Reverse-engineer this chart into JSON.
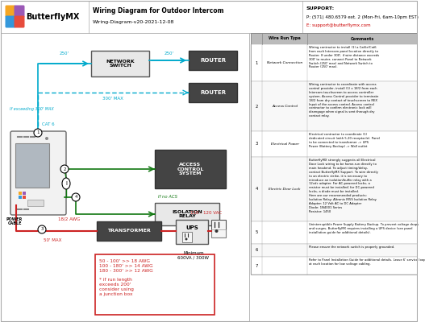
{
  "title": "Wiring Diagram for Outdoor Intercom",
  "subtitle": "Wiring-Diagram-v20-2021-12-08",
  "support_label": "SUPPORT:",
  "support_phone": "P: (571) 480.6579 ext. 2 (Mon-Fri, 6am-10pm EST)",
  "support_email": "E: support@butterflymx.com",
  "logo_text": "ButterflyMX",
  "bg_color": "#ffffff",
  "cyan_color": "#00aacc",
  "red_color": "#cc2222",
  "green_color": "#117711",
  "dark_box": "#444444",
  "light_box": "#dddddd",
  "table_header_bg": "#bbbbbb",
  "table_rows": [
    {
      "num": "1",
      "type": "Network Connection",
      "comment": "Wiring contractor to install (1) a Cat5e/Cat6\nfrom each Intercom panel location directly to\nRouter. If under 300', if wire distance exceeds\n300' to router, connect Panel to Network\nSwitch (250' max) and Network Switch to\nRouter (250' max)."
    },
    {
      "num": "2",
      "type": "Access Control",
      "comment": "Wiring contractor to coordinate with access\ncontrol provider, install (1) x 18/2 from each\nIntercom touchscreen to access controller\nsystem. Access Control provider to terminate\n18/2 from dry contact of touchscreen to REX\nInput of the access control. Access control\ncontractor to confirm electronic lock will\ndisengage when signal is sent through dry\ncontact relay."
    },
    {
      "num": "3",
      "type": "Electrical Power",
      "comment": "Electrical contractor to coordinate (1)\ndedicated circuit (with 5-20 receptacle). Panel\nto be connected to transformer -> UPS\nPower (Battery Backup) -> Wall outlet"
    },
    {
      "num": "4",
      "type": "Electric Door Lock",
      "comment": "ButterflyMX strongly suggests all Electrical\nDoor Lock wiring to be home-run directly to\nmain headend. To adjust timing/delay,\ncontact ButterflyMX Support. To wire directly\nto an electric strike, it is necessary to\nintroduce an isolation/buffer relay with a\n12vdc adapter. For AC-powered locks, a\nresistor must be installed; for DC-powered\nlocks, a diode must be installed.\nHere are our recommended products:\nIsolation Relay: Altronix IR5S Isolation Relay\nAdapter: 12 Volt AC to DC Adapter\nDiode: 1N4001 Series\nResistor: 1450"
    },
    {
      "num": "5",
      "type": "",
      "comment": "Uninterruptible Power Supply Battery Backup. To prevent voltage drops\nand surges, ButterflyMX requires installing a UPS device (see panel\ninstallation guide for additional details)."
    },
    {
      "num": "6",
      "type": "",
      "comment": "Please ensure the network switch is properly grounded."
    },
    {
      "num": "7",
      "type": "",
      "comment": "Refer to Panel Installation Guide for additional details. Leave 6' service loop\nat each location for low voltage cabling."
    }
  ],
  "awg_text": "50 - 100' >> 18 AWG\n100 - 180' >> 14 AWG\n180 - 300' >> 12 AWG\n\n* if run length\nexceeds 200'\nconsider using\na junction box"
}
